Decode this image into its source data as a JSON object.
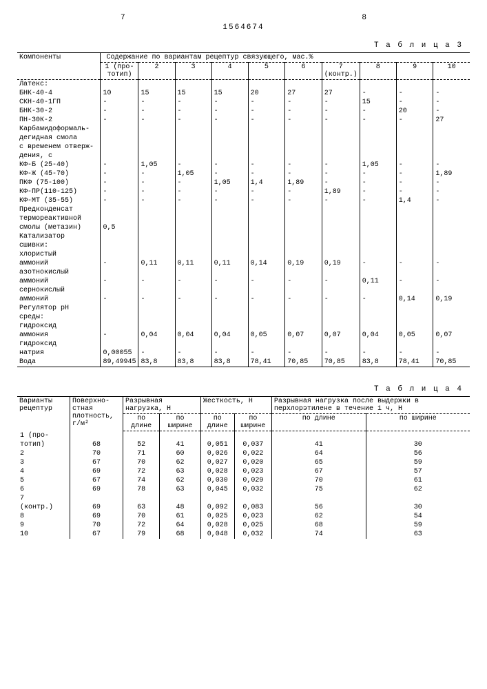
{
  "page_left": "7",
  "page_right": "8",
  "doc_number": "1564674",
  "table3": {
    "caption": "Т а б л и ц а 3",
    "header_comp": "Компоненты",
    "header_span": "Содержание по вариантам рецептур связующего, мас.%",
    "variants": [
      "1 (про&shy;тотип)",
      "2",
      "3",
      "4",
      "5",
      "6",
      "7 (контр.)",
      "8",
      "9",
      "10"
    ],
    "rows": [
      {
        "label": "Латекс:",
        "v": [
          "",
          "",
          "",
          "",
          "",
          "",
          "",
          "",
          "",
          ""
        ]
      },
      {
        "label": "БНК-40-4",
        "v": [
          "10",
          "15",
          "15",
          "15",
          "20",
          "27",
          "27",
          "-",
          "-",
          "-"
        ]
      },
      {
        "label": "СКН-40-1ГП",
        "v": [
          "-",
          "-",
          "-",
          "-",
          "-",
          "-",
          "-",
          "15",
          "-",
          "-"
        ]
      },
      {
        "label": "БНК-30-2",
        "v": [
          "-",
          "-",
          "-",
          "-",
          "-",
          "-",
          "-",
          "-",
          "20",
          "-"
        ]
      },
      {
        "label": "ПН-30К-2",
        "v": [
          "-",
          "-",
          "-",
          "-",
          "-",
          "-",
          "-",
          "-",
          "-",
          "27"
        ]
      },
      {
        "label": "Карбамидоформаль-",
        "v": [
          "",
          "",
          "",
          "",
          "",
          "",
          "",
          "",
          "",
          ""
        ]
      },
      {
        "label": "дегидная смола",
        "v": [
          "",
          "",
          "",
          "",
          "",
          "",
          "",
          "",
          "",
          ""
        ]
      },
      {
        "label": "с временем отверж-",
        "v": [
          "",
          "",
          "",
          "",
          "",
          "",
          "",
          "",
          "",
          ""
        ]
      },
      {
        "label": "дения, с",
        "v": [
          "",
          "",
          "",
          "",
          "",
          "",
          "",
          "",
          "",
          ""
        ]
      },
      {
        "label": "КФ-Б (25-40)",
        "v": [
          "-",
          "1,05",
          "-",
          "-",
          "-",
          "-",
          "-",
          "1,05",
          "-",
          "-"
        ]
      },
      {
        "label": "КФ-Ж (45-70)",
        "v": [
          "-",
          "-",
          "1,05",
          "-",
          "-",
          "-",
          "-",
          "-",
          "-",
          "1,89"
        ]
      },
      {
        "label": "ПКФ (75-100)",
        "v": [
          "-",
          "-",
          "-",
          "1,05",
          "1,4",
          "1,89",
          "-",
          "-",
          "-",
          "-"
        ]
      },
      {
        "label": "КФ-ПР(110-125)",
        "v": [
          "-",
          "-",
          "-",
          "-",
          "-",
          "-",
          "1,89",
          "-",
          "-",
          "-"
        ]
      },
      {
        "label": "КФ-МТ (35-55)",
        "v": [
          "-",
          "-",
          "-",
          "-",
          "-",
          "-",
          "-",
          "-",
          "1,4",
          "-"
        ]
      },
      {
        "label": "Предконденсат",
        "v": [
          "",
          "",
          "",
          "",
          "",
          "",
          "",
          "",
          "",
          ""
        ]
      },
      {
        "label": "термореактивной",
        "v": [
          "",
          "",
          "",
          "",
          "",
          "",
          "",
          "",
          "",
          ""
        ]
      },
      {
        "label": "смолы (метазин)",
        "v": [
          "0,5",
          "",
          "",
          "",
          "",
          "",
          "",
          "",
          "",
          ""
        ]
      },
      {
        "label": "Катализатор",
        "v": [
          "",
          "",
          "",
          "",
          "",
          "",
          "",
          "",
          "",
          ""
        ]
      },
      {
        "label": "сшивки:",
        "v": [
          "",
          "",
          "",
          "",
          "",
          "",
          "",
          "",
          "",
          ""
        ]
      },
      {
        "label": "  хлористый",
        "v": [
          "",
          "",
          "",
          "",
          "",
          "",
          "",
          "",
          "",
          ""
        ]
      },
      {
        "label": "  аммоний",
        "v": [
          "-",
          "0,11",
          "0,11",
          "0,11",
          "0,14",
          "0,19",
          "0,19",
          "-",
          "-",
          "-"
        ]
      },
      {
        "label": "  азотнокислый",
        "v": [
          "",
          "",
          "",
          "",
          "",
          "",
          "",
          "",
          "",
          ""
        ]
      },
      {
        "label": "  аммоний",
        "v": [
          "-",
          "-",
          "-",
          "-",
          "-",
          "-",
          "-",
          "0,11",
          "-",
          "-"
        ]
      },
      {
        "label": "  сернокислый",
        "v": [
          "",
          "",
          "",
          "",
          "",
          "",
          "",
          "",
          "",
          ""
        ]
      },
      {
        "label": "  аммоний",
        "v": [
          "-",
          "-",
          "-",
          "-",
          "-",
          "-",
          "-",
          "-",
          "0,14",
          "0,19"
        ]
      },
      {
        "label": "Регулятор pH",
        "v": [
          "",
          "",
          "",
          "",
          "",
          "",
          "",
          "",
          "",
          ""
        ]
      },
      {
        "label": "среды:",
        "v": [
          "",
          "",
          "",
          "",
          "",
          "",
          "",
          "",
          "",
          ""
        ]
      },
      {
        "label": "  гидроксид",
        "v": [
          "",
          "",
          "",
          "",
          "",
          "",
          "",
          "",
          "",
          ""
        ]
      },
      {
        "label": "  аммония",
        "v": [
          "-",
          "0,04",
          "0,04",
          "0,04",
          "0,05",
          "0,07",
          "0,07",
          "0,04",
          "0,05",
          "0,07"
        ]
      },
      {
        "label": "  гидроксид",
        "v": [
          "",
          "",
          "",
          "",
          "",
          "",
          "",
          "",
          "",
          ""
        ]
      },
      {
        "label": "  натрия",
        "v": [
          "0,00055",
          "-",
          "-",
          "-",
          "-",
          "-",
          "-",
          "-",
          "-",
          "-"
        ]
      },
      {
        "label": "Вода",
        "v": [
          "89,49945",
          "83,8",
          "83,8",
          "83,8",
          "78,41",
          "70,85",
          "70,85",
          "83,8",
          "78,41",
          "70,85"
        ],
        "last": true
      }
    ]
  },
  "table4": {
    "caption": "Т а б л и ц а 4",
    "headers": {
      "c1": "Варианты рецептур",
      "c2": "Поверхно- стная плотность, г/м²",
      "c3": "Разрывная нагрузка, Н",
      "c4": "Жесткость, Н",
      "c5": "Разрывная нагрузка после выдержки в перхлорэтилене в течение 1 ч, Н",
      "sub_len": "по длине",
      "sub_wid": "по ширине"
    },
    "rows": [
      {
        "c1": "1 (про-",
        "c2": "",
        "v": [
          "",
          "",
          "",
          "",
          "",
          ""
        ]
      },
      {
        "c1": "тотип)",
        "c2": "68",
        "v": [
          "52",
          "41",
          "0,051",
          "0,037",
          "41",
          "30"
        ]
      },
      {
        "c1": "2",
        "c2": "70",
        "v": [
          "71",
          "60",
          "0,026",
          "0,022",
          "64",
          "56"
        ]
      },
      {
        "c1": "3",
        "c2": "67",
        "v": [
          "70",
          "62",
          "0,027",
          "0,020",
          "65",
          "59"
        ]
      },
      {
        "c1": "4",
        "c2": "69",
        "v": [
          "72",
          "63",
          "0,028",
          "0,023",
          "67",
          "57"
        ]
      },
      {
        "c1": "5",
        "c2": "67",
        "v": [
          "74",
          "62",
          "0,030",
          "0,029",
          "70",
          "61"
        ]
      },
      {
        "c1": "6",
        "c2": "69",
        "v": [
          "78",
          "63",
          "0,045",
          "0,032",
          "75",
          "62"
        ]
      },
      {
        "c1": "7",
        "c2": "",
        "v": [
          "",
          "",
          "",
          "",
          "",
          ""
        ]
      },
      {
        "c1": "(контр.)",
        "c2": "69",
        "v": [
          "63",
          "48",
          "0,092",
          "0,083",
          "56",
          "30"
        ]
      },
      {
        "c1": "8",
        "c2": "69",
        "v": [
          "70",
          "61",
          "0,025",
          "0,023",
          "62",
          "54"
        ]
      },
      {
        "c1": "9",
        "c2": "70",
        "v": [
          "72",
          "64",
          "0,028",
          "0,025",
          "68",
          "59"
        ]
      },
      {
        "c1": "10",
        "c2": "67",
        "v": [
          "79",
          "68",
          "0,048",
          "0,032",
          "74",
          "63"
        ]
      }
    ]
  }
}
